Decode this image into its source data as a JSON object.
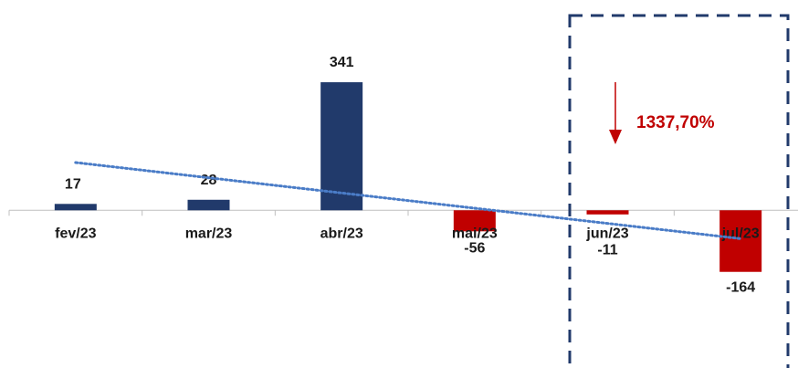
{
  "chart_data": {
    "type": "bar",
    "categories": [
      "fev/23",
      "mar/23",
      "abr/23",
      "mai/23",
      "jun/23",
      "jul/23"
    ],
    "values": [
      17,
      28,
      341,
      -56,
      -11,
      -164
    ],
    "data_labels": [
      "17",
      "28",
      "341",
      "-56",
      "-11",
      "-164"
    ],
    "ylim": [
      -420,
      560
    ],
    "colors": {
      "positive": "#213a6b",
      "negative": "#c00000",
      "axis": "#bfbfbf",
      "trendline": "#4a7cc7",
      "highlight_box": "#213a6b"
    },
    "trendline": {
      "type": "linear",
      "style": "dotted"
    },
    "highlight": {
      "categories": [
        "jun/23",
        "jul/23"
      ],
      "style": "dashed-box"
    },
    "annotation": {
      "text": "1337,70%",
      "color": "#c00000",
      "arrow": "down"
    }
  }
}
